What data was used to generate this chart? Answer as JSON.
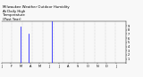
{
  "title": "Milwaukee Weather Outdoor Humidity  At Daily High  Temperature  (Past Year)",
  "num_points": 365,
  "blue_color": "#0000ff",
  "red_color": "#cc0000",
  "bg_color": "#f8f8f8",
  "grid_color": "#888888",
  "title_fontsize": 2.8,
  "tick_fontsize": 2.5,
  "ylim": [
    0,
    100
  ],
  "ytick_positions": [
    10,
    20,
    30,
    40,
    50,
    60,
    70,
    80,
    90
  ],
  "ytick_labels": [
    "1",
    "2",
    "3",
    "4",
    "5",
    "6",
    "7",
    "8",
    "9"
  ],
  "spike_indices": [
    55,
    80,
    148
  ],
  "spike_values": [
    88,
    72,
    100
  ],
  "num_vgrid": 13,
  "seed": 17
}
